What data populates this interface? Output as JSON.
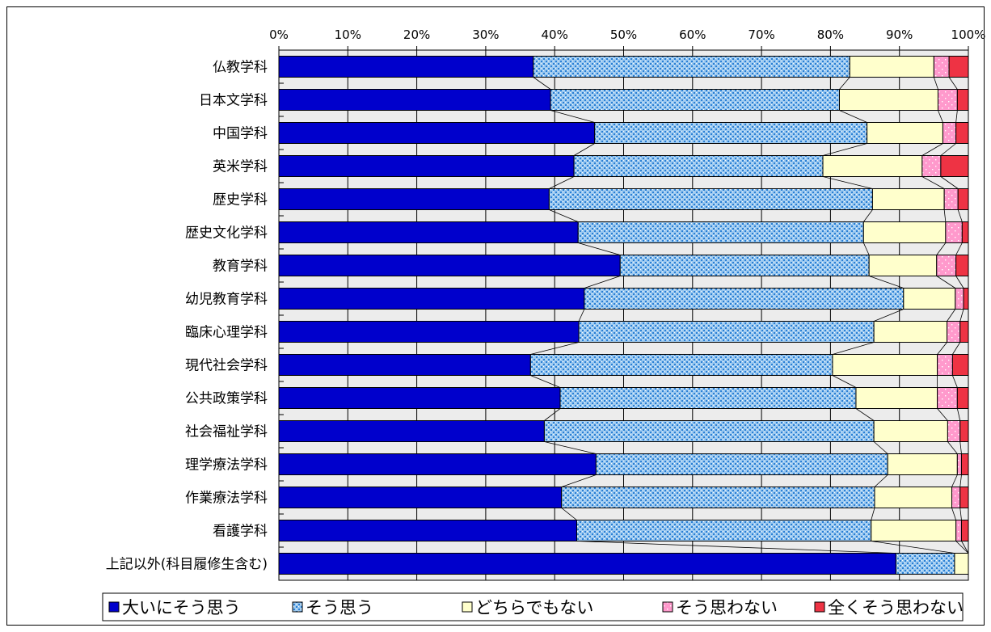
{
  "chart_data": {
    "type": "bar",
    "orientation": "horizontal",
    "stacked": "percent",
    "xlim": [
      0,
      100
    ],
    "x_ticks": [
      "0%",
      "10%",
      "20%",
      "30%",
      "40%",
      "50%",
      "60%",
      "70%",
      "80%",
      "90%",
      "100%"
    ],
    "categories": [
      "仏教学科",
      "日本文学科",
      "中国学科",
      "英米学科",
      "歴史学科",
      "歴史文化学科",
      "教育学科",
      "幼児教育学科",
      "臨床心理学科",
      "現代社会学科",
      "公共政策学科",
      "社会福祉学科",
      "理学療法学科",
      "作業療法学科",
      "看護学科",
      "上記以外(科目履修生含む)"
    ],
    "series": [
      {
        "name": "大いにそう思う",
        "color": "#0000cc",
        "pattern": "solid",
        "values": [
          36.9,
          39.4,
          45.8,
          42.8,
          39.2,
          43.4,
          49.5,
          44.3,
          43.5,
          36.5,
          40.8,
          38.5,
          46.0,
          41.0,
          43.2,
          89.5
        ]
      },
      {
        "name": "そう思う",
        "color": "#7fb8ea",
        "pattern": "dotted",
        "values": [
          45.9,
          41.9,
          39.5,
          36.1,
          46.9,
          41.4,
          36.1,
          46.3,
          42.8,
          43.8,
          42.9,
          47.8,
          42.3,
          45.4,
          42.7,
          8.5
        ]
      },
      {
        "name": "どちらでもない",
        "color": "#ffffcc",
        "pattern": "solid",
        "values": [
          12.2,
          14.3,
          11.0,
          14.4,
          10.4,
          11.9,
          9.8,
          7.5,
          10.6,
          15.2,
          11.8,
          10.7,
          10.1,
          11.2,
          12.3,
          2.0
        ]
      },
      {
        "name": "そう思わない",
        "color": "#ff99cc",
        "pattern": "dotted",
        "values": [
          2.2,
          2.8,
          1.9,
          2.7,
          2.0,
          2.4,
          2.8,
          1.2,
          1.9,
          2.2,
          2.9,
          1.8,
          0.6,
          1.2,
          0.8,
          0.0
        ]
      },
      {
        "name": "全くそう思わない",
        "color": "#ee3344",
        "pattern": "solid",
        "values": [
          2.8,
          1.6,
          1.8,
          4.0,
          1.5,
          0.9,
          1.8,
          0.7,
          1.2,
          2.3,
          1.6,
          1.2,
          1.0,
          1.2,
          1.0,
          0.0
        ]
      }
    ],
    "series_lines": true,
    "grid": true,
    "legend_position": "bottom"
  }
}
